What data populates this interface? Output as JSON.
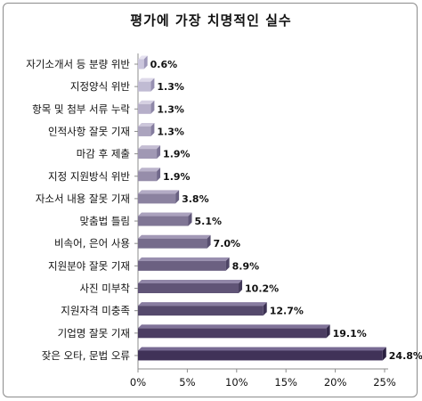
{
  "chart_data": {
    "type": "bar",
    "orientation": "horizontal",
    "title": "평가에 가장 치명적인 실수",
    "categories": [
      "자기소개서 등 분량 위반",
      "지정양식 위반",
      "항목 및 첨부 서류 누락",
      "인적사항 잘못 기재",
      "마감 후 제출",
      "지정 지원방식 위반",
      "자소서 내용 잘못 기재",
      "맞춤법 틀림",
      "비속어, 은어 사용",
      "지원분야 잘못 기재",
      "사진 미부착",
      "지원자격 미충족",
      "기업명 잘못 기재",
      "잦은 오타, 문법 오류"
    ],
    "values": [
      0.6,
      1.3,
      1.3,
      1.3,
      1.9,
      1.9,
      3.8,
      5.1,
      7.0,
      8.9,
      10.2,
      12.7,
      19.1,
      24.8
    ],
    "value_labels": [
      "0.6%",
      "1.3%",
      "1.3%",
      "1.3%",
      "1.9%",
      "1.9%",
      "3.8%",
      "5.1%",
      "7.0%",
      "8.9%",
      "10.2%",
      "12.7%",
      "19.1%",
      "24.8%"
    ],
    "xlim": [
      0,
      25
    ],
    "xticks": [
      "0%",
      "5%",
      "10%",
      "15%",
      "20%",
      "25%"
    ],
    "grid": false,
    "colors": {
      "light_front": "#cbc6dd",
      "light_top": "#e6e2f0",
      "light_side": "#9f98ba",
      "dark_front": "#403258",
      "dark_top": "#776a92",
      "dark_side": "#2a2040",
      "axis": "#8c8c8c"
    }
  }
}
